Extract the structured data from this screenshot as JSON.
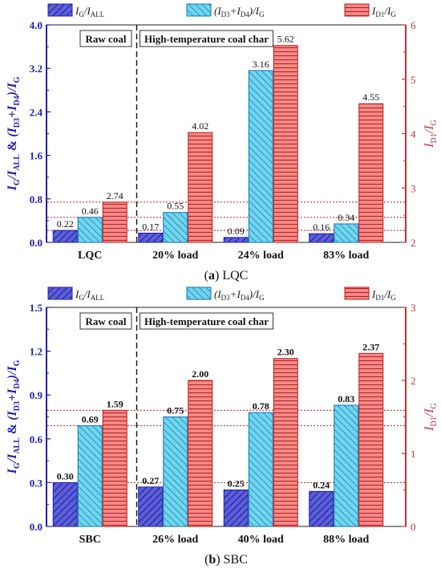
{
  "series_names": [
    {
      "main": "I",
      "sub": "G",
      "tail": "/I",
      "tail_sub": "ALL"
    },
    {
      "main": "(I",
      "sub": "D3",
      "tail": "+I",
      "tail_sub": "D4",
      "end": ")/I",
      "end_sub": "G"
    },
    {
      "main": "I",
      "sub": "D1",
      "tail": "/I",
      "tail_sub": "G"
    }
  ],
  "colors": {
    "blue_dark": "#1d1ea8",
    "blue_fill": "#5d5fd6",
    "cyan_fill": "#6fd6ee",
    "cyan_stroke": "#1273b3",
    "red_fill": "#f08a88",
    "red_stroke": "#c21b1b",
    "red_axis": "#c83232",
    "blue_axis": "#1f1fb0"
  },
  "annotations": {
    "raw": "Raw coal",
    "high": "High-temperature coal char"
  },
  "chart_data": [
    {
      "type": "bar",
      "caption_letter": "(a)",
      "caption_text": " LQC",
      "categories": [
        "LQC",
        "20% load",
        "24% load",
        "83% load"
      ],
      "series": [
        {
          "values": [
            0.22,
            0.17,
            0.09,
            0.16
          ],
          "labels": [
            "0.22",
            "0.17",
            "0.09",
            "0.16"
          ],
          "axis": "left"
        },
        {
          "values": [
            0.46,
            0.55,
            3.16,
            0.34
          ],
          "labels": [
            "0.46",
            "0.55",
            "3.16",
            "0.34"
          ],
          "axis": "left"
        },
        {
          "values": [
            2.74,
            4.02,
            5.62,
            4.55
          ],
          "labels": [
            "2.74",
            "4.02",
            "5.62",
            "4.55"
          ],
          "axis": "right"
        }
      ],
      "ylim": [
        0,
        4.0
      ],
      "yticks": [
        "0.0",
        "0.8",
        "1.6",
        "2.4",
        "3.2",
        "4.0"
      ],
      "yminor": 0.4,
      "y2lim": [
        2,
        6
      ],
      "y2ticks": [
        "2",
        "3",
        "4",
        "5",
        "6"
      ],
      "ref_lines_left": [
        0.22,
        0.46
      ],
      "ref_lines_right": [
        2.74
      ],
      "bold_labels": false
    },
    {
      "type": "bar",
      "caption_letter": "(b)",
      "caption_text": " SBC",
      "categories": [
        "SBC",
        "26% load",
        "40% load",
        "88% load"
      ],
      "series": [
        {
          "values": [
            0.3,
            0.27,
            0.25,
            0.24
          ],
          "labels": [
            "0.30",
            "0.27",
            "0.25",
            "0.24"
          ],
          "axis": "left"
        },
        {
          "values": [
            0.69,
            0.75,
            0.78,
            0.83
          ],
          "labels": [
            "0.69",
            "0.75",
            "0.78",
            "0.83"
          ],
          "axis": "left"
        },
        {
          "values": [
            1.59,
            2.0,
            2.3,
            2.37
          ],
          "labels": [
            "1.59",
            "2.00",
            "2.30",
            "2.37"
          ],
          "axis": "right"
        }
      ],
      "ylim": [
        0,
        1.5
      ],
      "yticks": [
        "0.0",
        "0.3",
        "0.6",
        "0.9",
        "1.2",
        "1.5"
      ],
      "yminor": 0.15,
      "y2lim": [
        0,
        3
      ],
      "y2ticks": [
        "0",
        "1",
        "2",
        "3"
      ],
      "ref_lines_left": [
        0.3,
        0.69
      ],
      "ref_lines_right": [
        1.59
      ],
      "bold_labels": true
    }
  ]
}
